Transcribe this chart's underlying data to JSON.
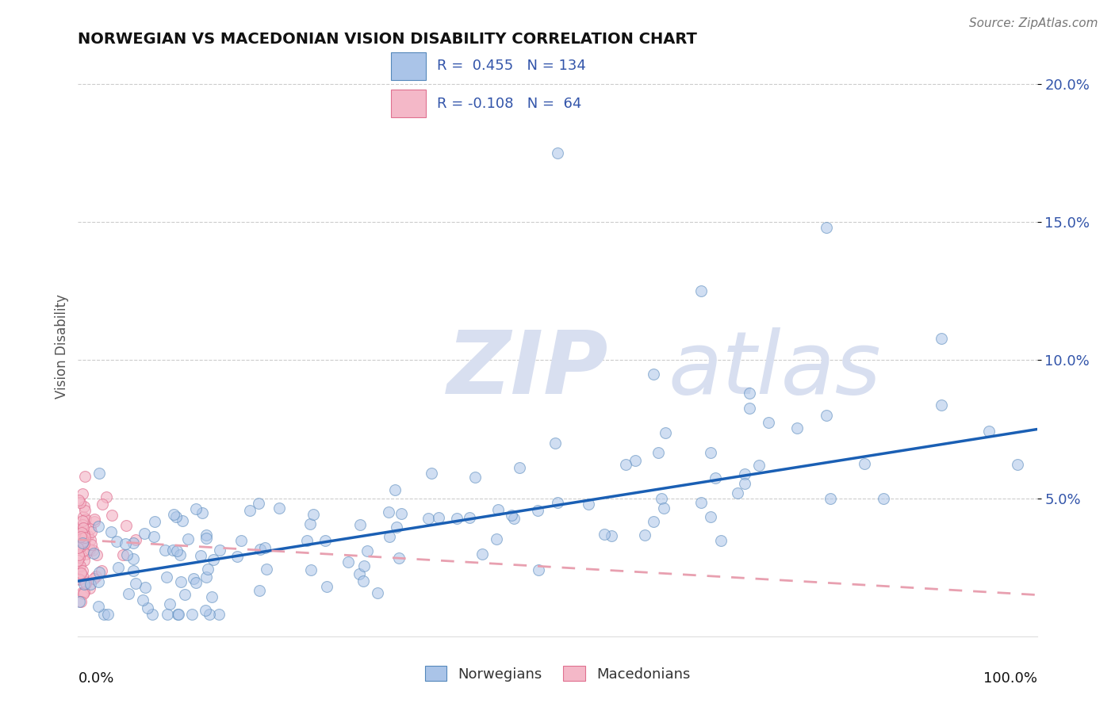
{
  "title": "NORWEGIAN VS MACEDONIAN VISION DISABILITY CORRELATION CHART",
  "source": "Source: ZipAtlas.com",
  "ylabel": "Vision Disability",
  "xlim": [
    0,
    1.0
  ],
  "ylim": [
    0,
    0.21
  ],
  "r_norwegian": 0.455,
  "n_norwegian": 134,
  "r_macedonian": -0.108,
  "n_macedonian": 64,
  "color_norwegian_fill": "#aac4e8",
  "color_norwegian_edge": "#5588bb",
  "color_macedonian_fill": "#f4b8c8",
  "color_macedonian_edge": "#e07090",
  "color_trend_norwegian": "#1a5fb4",
  "color_trend_macedonian": "#e8a0b0",
  "watermark_zip": "ZIP",
  "watermark_atlas": "atlas",
  "watermark_color": "#d8dff0",
  "legend_text_color": "#3355aa",
  "legend_r_color": "#3355aa",
  "ytick_labels": [
    "5.0%",
    "10.0%",
    "15.0%",
    "20.0%"
  ],
  "ytick_vals": [
    0.05,
    0.1,
    0.15,
    0.2
  ],
  "trend_norw_start": 0.02,
  "trend_norw_end": 0.075,
  "trend_mace_start": 0.035,
  "trend_mace_end": 0.015
}
